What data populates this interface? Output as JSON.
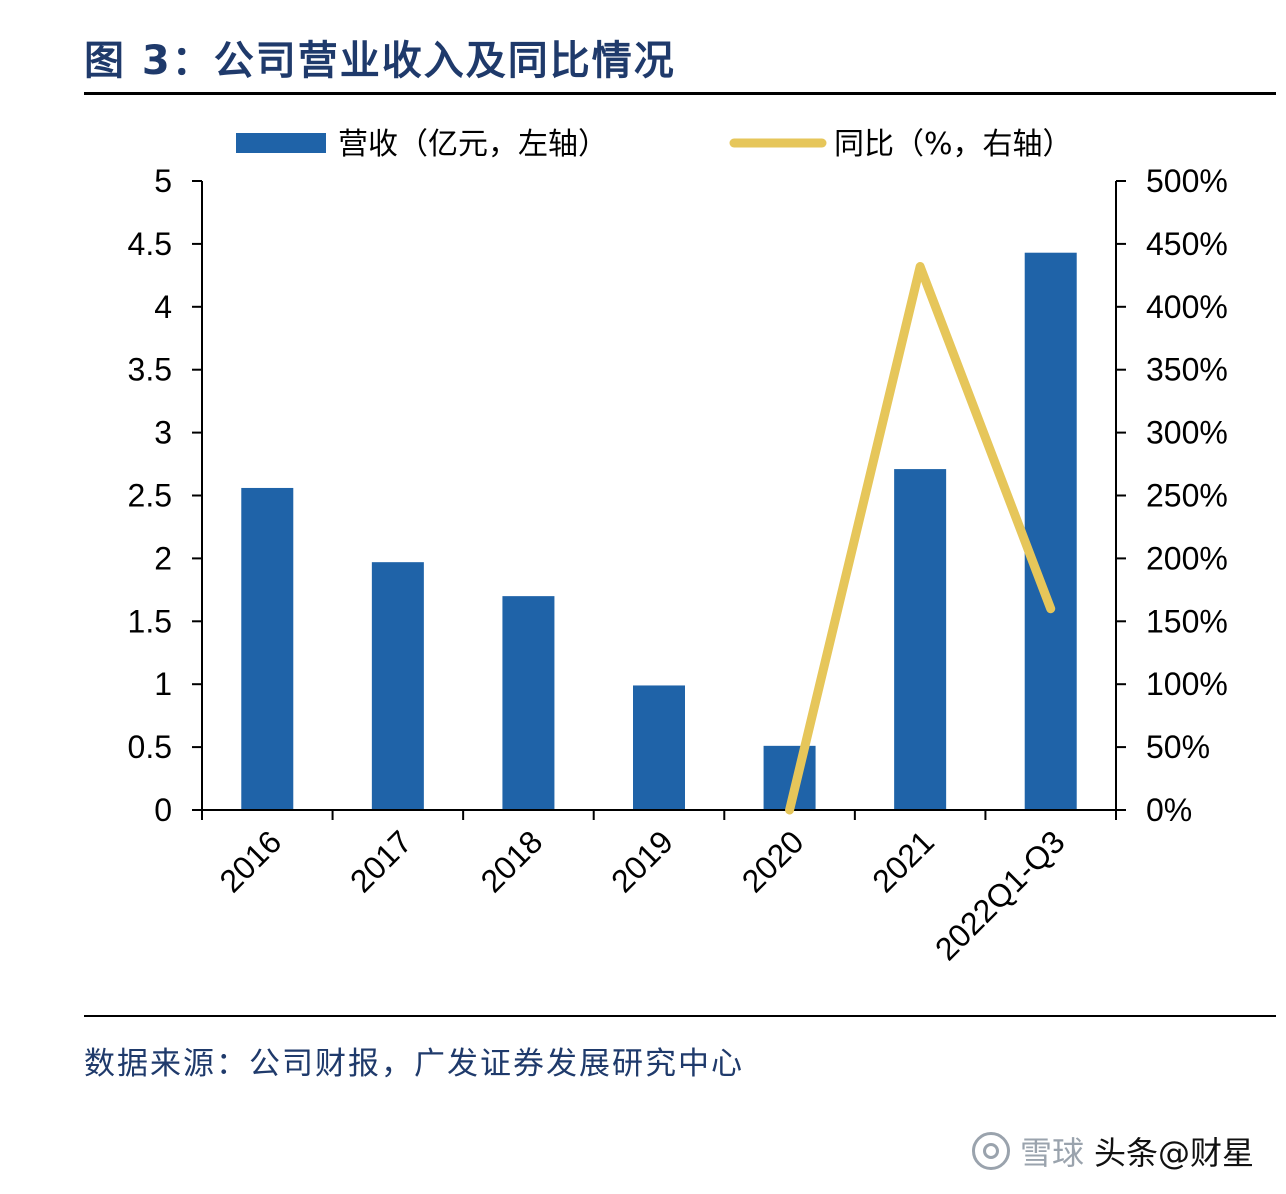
{
  "title": "图 3：公司营业收入及同比情况",
  "source": "数据来源：公司财报，广发证券发展研究中心",
  "watermark": {
    "logo_icon": "xueqiu-logo-icon",
    "xueqiu": "雪球",
    "toutiao": "头条@财星"
  },
  "chart_data": {
    "type": "bar",
    "categories": [
      "2016",
      "2017",
      "2018",
      "2019",
      "2020",
      "2021",
      "2022Q1-Q3"
    ],
    "series": [
      {
        "name": "营收（亿元，左轴）",
        "type": "bar",
        "axis": "left",
        "color": "#1f63a8",
        "values": [
          2.56,
          1.97,
          1.7,
          0.99,
          0.51,
          2.71,
          4.43
        ]
      },
      {
        "name": "同比（%，右轴）",
        "type": "line",
        "axis": "right",
        "color": "#e6c65a",
        "values": [
          null,
          null,
          null,
          null,
          0,
          432,
          160
        ]
      }
    ],
    "yleft": {
      "min": 0,
      "max": 5,
      "ticks": [
        "0",
        "0.5",
        "1",
        "1.5",
        "2",
        "2.5",
        "3",
        "3.5",
        "4",
        "4.5",
        "5"
      ]
    },
    "yright": {
      "min": 0,
      "max": 500,
      "ticks": [
        "0%",
        "50%",
        "100%",
        "150%",
        "200%",
        "250%",
        "300%",
        "350%",
        "400%",
        "450%",
        "500%"
      ]
    },
    "legend_position": "top",
    "grid": false
  }
}
